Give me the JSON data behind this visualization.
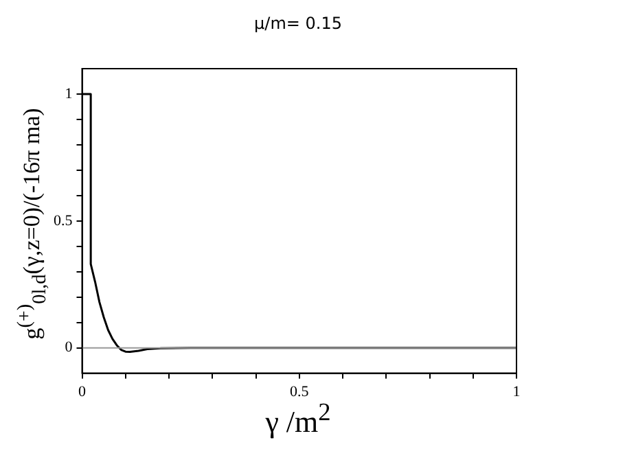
{
  "chart_data": {
    "type": "line",
    "title": "μ/m= 0.15",
    "xlabel": "γ /m$^{2}$",
    "ylabel": "g$^{(+)}$$_{0l,d}$(γ,z=0)/(-16π ma)",
    "x": [
      0,
      0.02,
      0.02,
      0.03,
      0.04,
      0.05,
      0.06,
      0.07,
      0.08,
      0.09,
      0.1,
      0.11,
      0.13,
      0.15,
      0.18,
      0.25,
      0.5,
      1
    ],
    "series": [
      {
        "color": "#000000",
        "values": [
          1,
          1,
          0.33,
          0.26,
          0.18,
          0.12,
          0.07,
          0.035,
          0.01,
          -0.008,
          -0.015,
          -0.016,
          -0.012,
          -0.005,
          -0.002,
          0,
          0,
          0
        ]
      }
    ],
    "xlim": [
      0,
      1
    ],
    "ylim": [
      -0.1,
      1.1
    ],
    "xticks": [
      0,
      {
        "value": 0.1,
        "label": null
      },
      {
        "value": 0.2,
        "label": null
      },
      {
        "value": 0.3,
        "label": null
      },
      {
        "value": 0.4,
        "label": null
      },
      0.5,
      {
        "value": 0.6,
        "label": null
      },
      {
        "value": 0.7,
        "label": null
      },
      {
        "value": 0.8,
        "label": null
      },
      {
        "value": 0.9,
        "label": null
      },
      1
    ],
    "yticks": [
      0,
      {
        "value": 0.1,
        "label": null
      },
      {
        "value": 0.2,
        "label": null
      },
      {
        "value": 0.3,
        "label": null
      },
      {
        "value": 0.4,
        "label": null
      },
      0.5,
      {
        "value": 0.6,
        "label": null
      },
      {
        "value": 0.7,
        "label": null
      },
      {
        "value": 0.8,
        "label": null
      },
      {
        "value": 0.9,
        "label": null
      },
      1
    ],
    "ref_lines": [
      {
        "axis": "y",
        "value": 0,
        "color": "#999999"
      }
    ],
    "grid": false,
    "legend": false,
    "marker": "none",
    "line_style": "solid"
  }
}
